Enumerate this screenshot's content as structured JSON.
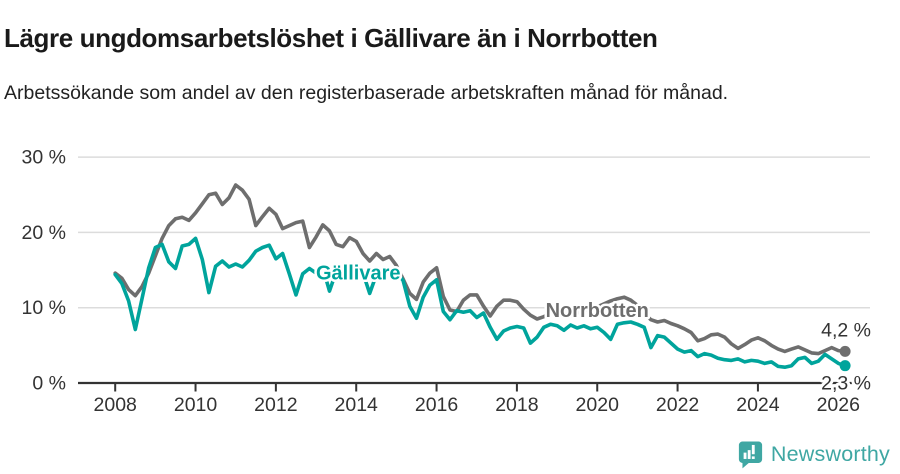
{
  "header": {
    "title": "Lägre ungdomsarbetslöshet i Gällivare än i Norrbotten",
    "subtitle": "Arbetssökande som andel av den registerbaserade arbetskraften månad för månad."
  },
  "footer": {
    "brand": "Newsworthy",
    "brand_color": "#3fa7a3",
    "logo_icon": "bar-chart-speech-bubble-icon"
  },
  "chart_data": {
    "type": "line",
    "title": "Lägre ungdomsarbetslöshet i Gällivare än i Norrbotten",
    "subtitle": "Arbetssökande som andel av den registerbaserade arbetskraften månad för månad.",
    "grid": "horizontal-only",
    "legend_position": "inline-labels-on-lines",
    "x_axis": {
      "ticks": [
        2008,
        2010,
        2012,
        2014,
        2016,
        2018,
        2020,
        2022,
        2024,
        2026
      ],
      "range": [
        2007.1,
        2026.8
      ]
    },
    "y_axis": {
      "unit": "%",
      "range": [
        0,
        30
      ],
      "ticks": [
        {
          "value": 0,
          "label": "0 %"
        },
        {
          "value": 10,
          "label": "10 %"
        },
        {
          "value": 20,
          "label": "20 %"
        },
        {
          "value": 30,
          "label": "30 %"
        }
      ]
    },
    "series": [
      {
        "name": "Norrbotten",
        "color": "#6e6e6e",
        "end_label": "4,2 %",
        "end_value": 4.2,
        "label_anchor": {
          "year": 2020.0,
          "value": 9.7
        },
        "start_year": 2008.0,
        "step_years": 0.1667,
        "values": [
          14.6,
          13.9,
          12.4,
          11.6,
          12.8,
          14.6,
          16.9,
          19.2,
          20.9,
          21.8,
          22.0,
          21.6,
          22.6,
          23.8,
          25.0,
          25.2,
          23.7,
          24.6,
          26.3,
          25.6,
          24.4,
          20.9,
          22.1,
          23.2,
          22.4,
          20.5,
          20.9,
          21.3,
          21.5,
          18.0,
          19.4,
          21.0,
          20.2,
          18.4,
          18.1,
          19.3,
          18.8,
          17.2,
          16.2,
          17.2,
          16.4,
          16.8,
          15.6,
          13.8,
          11.9,
          11.1,
          13.4,
          14.6,
          15.3,
          11.5,
          9.7,
          9.5,
          11.0,
          11.7,
          11.7,
          10.2,
          8.9,
          10.2,
          11.0,
          11.0,
          10.8,
          9.8,
          9.0,
          8.5,
          8.8,
          9.3,
          9.6,
          9.2,
          8.9,
          9.3,
          9.6,
          9.9,
          10.1,
          10.5,
          10.9,
          11.2,
          11.4,
          11.0,
          10.3,
          9.2,
          8.4,
          8.1,
          8.3,
          7.9,
          7.6,
          7.2,
          6.7,
          5.6,
          5.9,
          6.4,
          6.5,
          6.1,
          5.2,
          4.6,
          5.1,
          5.7,
          6.0,
          5.6,
          5.0,
          4.5,
          4.2,
          4.5,
          4.8,
          4.4,
          4.0,
          3.9,
          4.3,
          4.7,
          4.3,
          4.2
        ]
      },
      {
        "name": "Gällivare",
        "color": "#00a49c",
        "end_label": "2,3 %",
        "end_value": 2.3,
        "label_anchor": {
          "year": 2014.05,
          "value": 14.7
        },
        "start_year": 2008.0,
        "step_years": 0.1667,
        "values": [
          14.4,
          13.2,
          10.9,
          7.1,
          11.2,
          15.3,
          18.0,
          18.4,
          16.1,
          15.2,
          18.2,
          18.4,
          19.2,
          16.4,
          12.0,
          15.5,
          16.2,
          15.4,
          15.8,
          15.4,
          16.3,
          17.5,
          18.0,
          18.3,
          16.5,
          17.2,
          14.5,
          11.7,
          14.5,
          15.2,
          14.6,
          15.3,
          12.2,
          14.8,
          15.1,
          15.0,
          15.3,
          14.6,
          11.9,
          14.4,
          14.9,
          15.2,
          14.8,
          13.6,
          10.2,
          8.6,
          11.4,
          13.0,
          13.7,
          9.5,
          8.4,
          9.6,
          9.4,
          9.6,
          8.7,
          9.3,
          7.4,
          5.8,
          6.9,
          7.3,
          7.5,
          7.3,
          5.3,
          6.1,
          7.4,
          7.8,
          7.6,
          7.0,
          7.7,
          7.3,
          7.6,
          7.2,
          7.4,
          6.7,
          5.8,
          7.8,
          8.0,
          8.1,
          7.8,
          7.4,
          4.7,
          6.3,
          6.1,
          5.3,
          4.5,
          4.1,
          4.3,
          3.5,
          3.9,
          3.7,
          3.3,
          3.1,
          3.0,
          3.2,
          2.8,
          3.0,
          2.9,
          2.6,
          2.8,
          2.2,
          2.1,
          2.3,
          3.2,
          3.4,
          2.6,
          2.9,
          3.8,
          3.2,
          2.6,
          2.3
        ]
      }
    ]
  }
}
